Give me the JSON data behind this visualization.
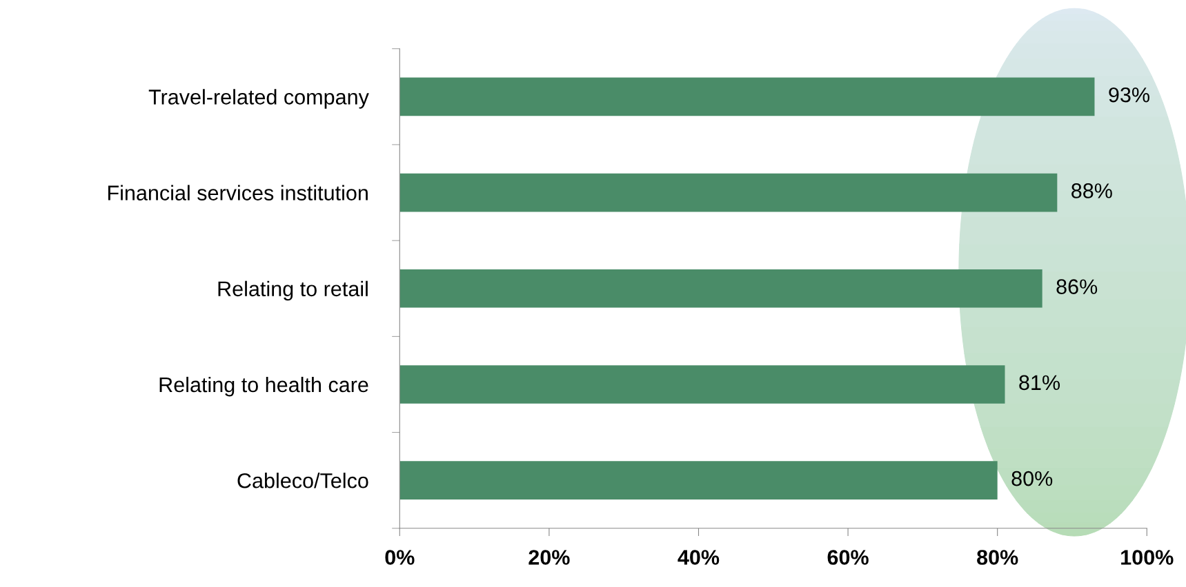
{
  "chart_data": {
    "type": "bar",
    "orientation": "horizontal",
    "categories": [
      "Travel-related company",
      "Financial services institution",
      "Relating to retail",
      "Relating to health care",
      "Cableco/Telco"
    ],
    "values": [
      93,
      88,
      86,
      81,
      80
    ],
    "value_labels": [
      "93%",
      "88%",
      "86%",
      "81%",
      "80%"
    ],
    "color": "#4a8c68",
    "xlim": [
      0,
      100
    ],
    "xticks": [
      {
        "value": 0,
        "label": "0%"
      },
      {
        "value": 20,
        "label": "20%"
      },
      {
        "value": 40,
        "label": "40%"
      },
      {
        "value": 60,
        "label": "60%"
      },
      {
        "value": 80,
        "label": "80%"
      },
      {
        "value": 100,
        "label": "100%"
      }
    ],
    "grid": false,
    "legend": false
  }
}
